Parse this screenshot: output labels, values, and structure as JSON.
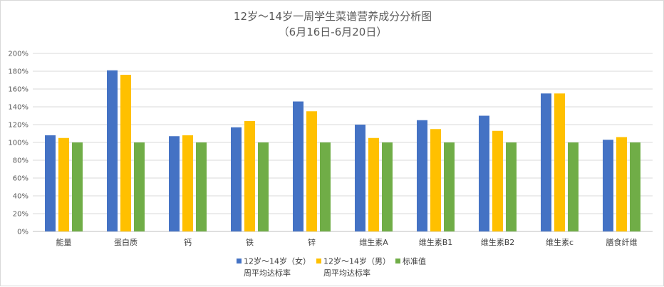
{
  "chart_data": {
    "type": "bar",
    "title": "12岁～14岁一周学生菜谱营养成分分析图",
    "subtitle": "（6月16日-6月20日）",
    "categories": [
      "能量",
      "蛋白质",
      "钙",
      "铁",
      "锌",
      "维生素A",
      "维生素B1",
      "维生素B2",
      "维生素c",
      "膳食纤维"
    ],
    "series": [
      {
        "name_line1": "12岁～14岁（女）",
        "name_line2": "周平均达标率",
        "color": "#4472c4",
        "values": [
          108,
          181,
          107,
          117,
          146,
          120,
          125,
          130,
          155,
          103
        ]
      },
      {
        "name_line1": "12岁～14岁（男）",
        "name_line2": "周平均达标率",
        "color": "#ffc000",
        "values": [
          105,
          176,
          108,
          124,
          135,
          105,
          115,
          113,
          155,
          106
        ]
      },
      {
        "name_line1": "标准值",
        "name_line2": "",
        "color": "#70ad47",
        "values": [
          100,
          100,
          100,
          100,
          100,
          100,
          100,
          100,
          100,
          100
        ]
      }
    ],
    "ylim": [
      0,
      200
    ],
    "yticks": [
      "0%",
      "20%",
      "40%",
      "60%",
      "80%",
      "100%",
      "120%",
      "140%",
      "160%",
      "180%",
      "200%"
    ],
    "grid": true,
    "legend_position": "bottom"
  }
}
